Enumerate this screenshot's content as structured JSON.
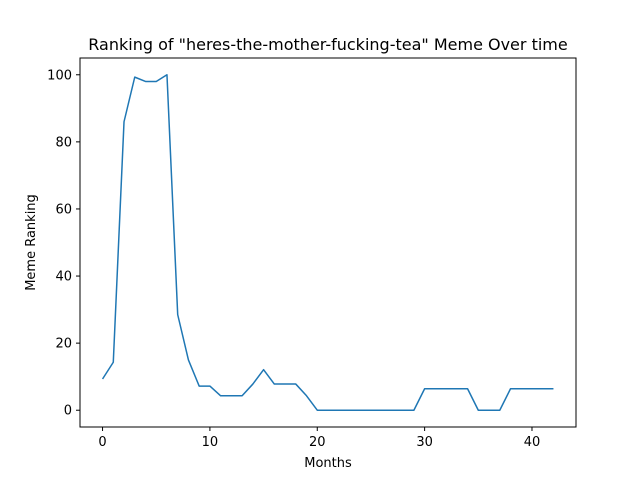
{
  "chart_data": {
    "type": "line",
    "title": "Ranking of \"heres-the-mother-fucking-tea\" Meme Over time",
    "xlabel": "Months",
    "ylabel": "Meme Ranking",
    "xlim": [
      -2.1,
      44.1
    ],
    "ylim": [
      -5,
      105
    ],
    "xticks": [
      "0",
      "10",
      "20",
      "30",
      "40"
    ],
    "yticks": [
      "0",
      "20",
      "40",
      "60",
      "80",
      "100"
    ],
    "grid": false,
    "series": [
      {
        "color": "#1f77b4",
        "x": [
          0,
          1,
          2,
          3,
          4,
          5,
          6,
          7,
          8,
          9,
          10,
          11,
          12,
          13,
          14,
          15,
          16,
          17,
          18,
          19,
          20,
          21,
          22,
          23,
          24,
          25,
          26,
          27,
          28,
          29,
          30,
          31,
          32,
          33,
          34,
          35,
          36,
          37,
          38,
          39,
          40,
          41,
          42
        ],
        "values": [
          9.3,
          14.3,
          86,
          99.3,
          98,
          98,
          100,
          28.5,
          15,
          7.2,
          7.2,
          4.3,
          4.3,
          4.3,
          7.8,
          12.1,
          7.8,
          7.8,
          7.8,
          4.3,
          0,
          0,
          0,
          0,
          0,
          0,
          0,
          0,
          0,
          0,
          6.4,
          6.4,
          6.4,
          6.4,
          6.4,
          0,
          0,
          0,
          6.4,
          6.4,
          6.4,
          6.4,
          6.4
        ]
      }
    ]
  }
}
